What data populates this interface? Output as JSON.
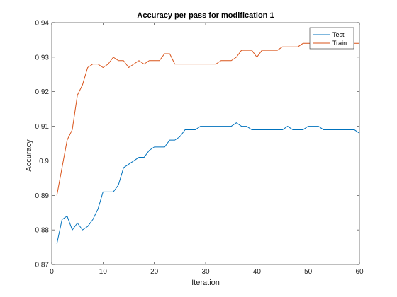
{
  "chart_data": {
    "type": "line",
    "title": "Accuracy per pass for modification 1",
    "xlabel": "Iteration",
    "ylabel": "Accuracy",
    "xlim": [
      0,
      60
    ],
    "ylim": [
      0.87,
      0.94
    ],
    "xticks": [
      0,
      10,
      20,
      30,
      40,
      50,
      60
    ],
    "yticks": [
      0.87,
      0.88,
      0.89,
      0.9,
      0.91,
      0.92,
      0.93,
      0.94
    ],
    "xtick_labels": [
      "0",
      "10",
      "20",
      "30",
      "40",
      "50",
      "60"
    ],
    "ytick_labels": [
      "0.87",
      "0.88",
      "0.89",
      "0.9",
      "0.91",
      "0.92",
      "0.93",
      "0.94"
    ],
    "grid": false,
    "legend_position": "top-right",
    "x": [
      1,
      2,
      3,
      4,
      5,
      6,
      7,
      8,
      9,
      10,
      11,
      12,
      13,
      14,
      15,
      16,
      17,
      18,
      19,
      20,
      21,
      22,
      23,
      24,
      25,
      26,
      27,
      28,
      29,
      30,
      31,
      32,
      33,
      34,
      35,
      36,
      37,
      38,
      39,
      40,
      41,
      42,
      43,
      44,
      45,
      46,
      47,
      48,
      49,
      50,
      51,
      52,
      53,
      54,
      55,
      56,
      57,
      58,
      59,
      60
    ],
    "series": [
      {
        "name": "Test",
        "color": "#0072BD",
        "values": [
          0.876,
          0.883,
          0.884,
          0.88,
          0.882,
          0.88,
          0.881,
          0.883,
          0.886,
          0.891,
          0.891,
          0.891,
          0.893,
          0.898,
          0.899,
          0.9,
          0.901,
          0.901,
          0.903,
          0.904,
          0.904,
          0.904,
          0.906,
          0.906,
          0.907,
          0.909,
          0.909,
          0.909,
          0.91,
          0.91,
          0.91,
          0.91,
          0.91,
          0.91,
          0.91,
          0.911,
          0.91,
          0.91,
          0.909,
          0.909,
          0.909,
          0.909,
          0.909,
          0.909,
          0.909,
          0.91,
          0.909,
          0.909,
          0.909,
          0.91,
          0.91,
          0.91,
          0.909,
          0.909,
          0.909,
          0.909,
          0.909,
          0.909,
          0.909,
          0.908
        ]
      },
      {
        "name": "Train",
        "color": "#D95319",
        "values": [
          0.89,
          0.898,
          0.906,
          0.909,
          0.919,
          0.922,
          0.927,
          0.928,
          0.928,
          0.927,
          0.928,
          0.93,
          0.929,
          0.929,
          0.927,
          0.928,
          0.929,
          0.928,
          0.929,
          0.929,
          0.929,
          0.931,
          0.931,
          0.928,
          0.928,
          0.928,
          0.928,
          0.928,
          0.928,
          0.928,
          0.928,
          0.928,
          0.929,
          0.929,
          0.929,
          0.93,
          0.932,
          0.932,
          0.932,
          0.93,
          0.932,
          0.932,
          0.932,
          0.932,
          0.933,
          0.933,
          0.933,
          0.933,
          0.934,
          0.934,
          0.934,
          0.934,
          0.934,
          0.934,
          0.934,
          0.934,
          0.934,
          0.934,
          0.934,
          0.934
        ]
      }
    ]
  }
}
